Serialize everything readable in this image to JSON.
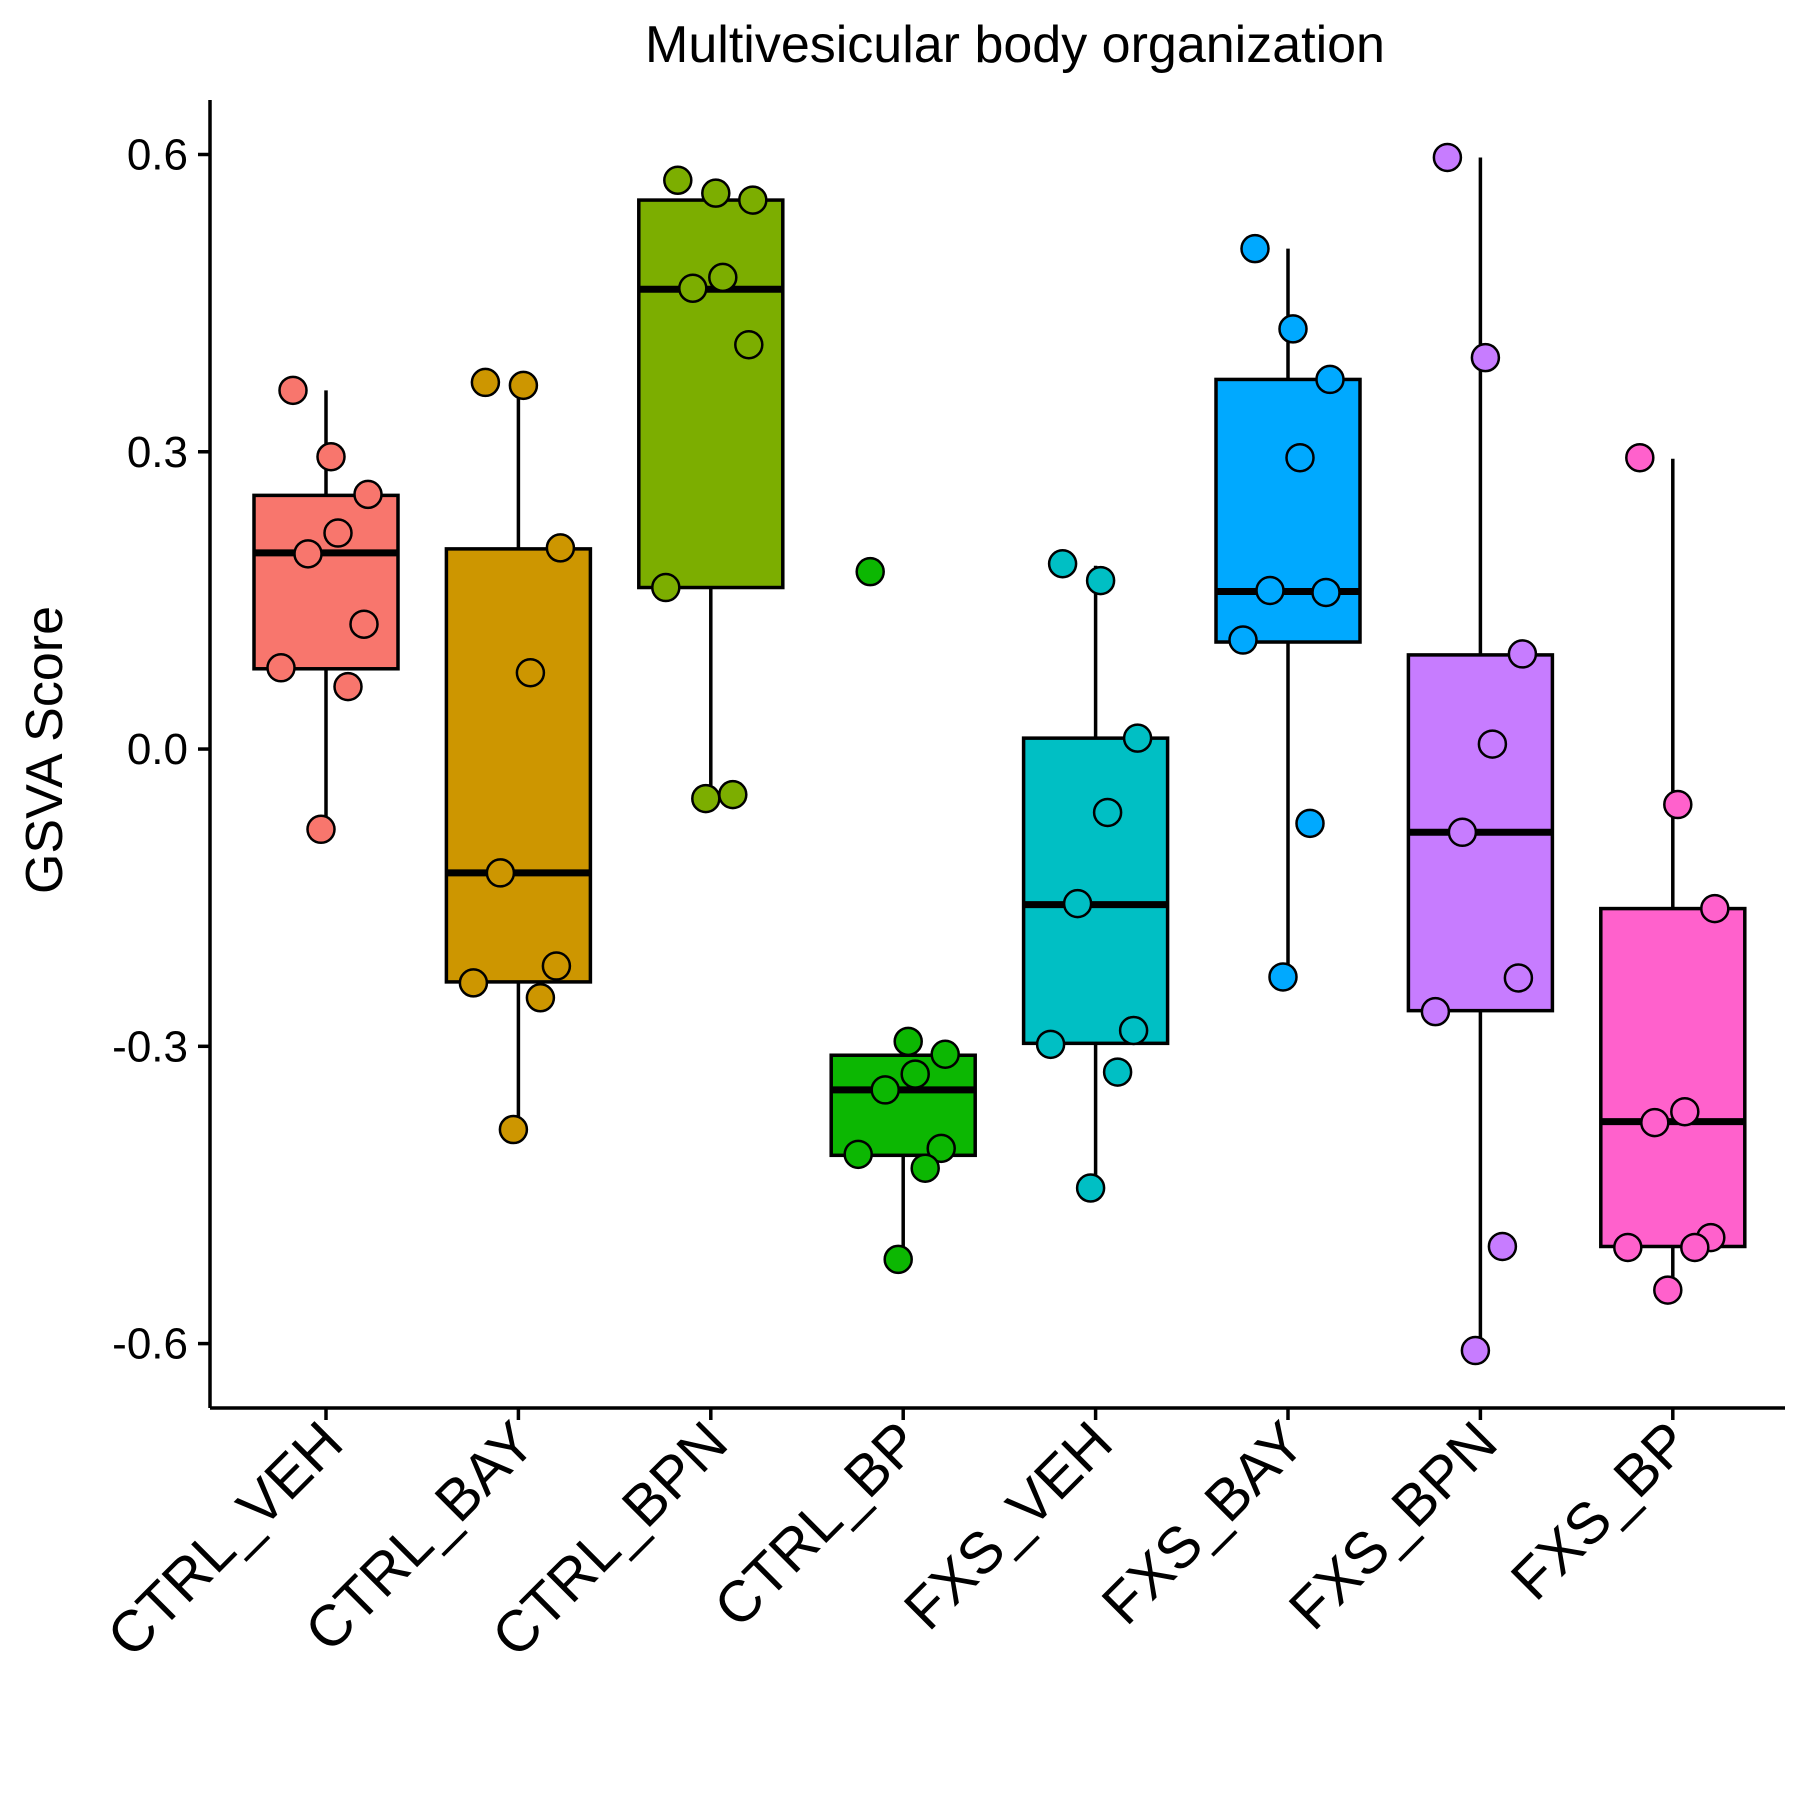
{
  "chart_data": {
    "type": "box",
    "title": "Multivesicular body organization",
    "xlabel": "",
    "ylabel": "GSVA Score",
    "ylim": [
      -0.665,
      0.655
    ],
    "yticks": [
      0.6,
      0.3,
      0.0,
      -0.3,
      -0.6
    ],
    "ytick_labels": [
      "0.6",
      "0.3",
      "0.0",
      "-0.3",
      "-0.6"
    ],
    "grid": false,
    "legend": "none",
    "categories": [
      "CTRL_VEH",
      "CTRL_BAY",
      "CTRL_BPN",
      "CTRL_BP",
      "FXS_VEH",
      "FXS_BAY",
      "FXS_BPN",
      "FXS_BP"
    ],
    "groups": [
      {
        "name": "CTRL_VEH",
        "color": "#F8766D",
        "box": {
          "q1": 0.081,
          "median": 0.198,
          "q3": 0.256,
          "whisker_low": -0.08,
          "whisker_high": 0.362
        },
        "points": [
          0.362,
          0.295,
          0.257,
          0.218,
          0.197,
          0.126,
          0.082,
          0.063,
          -0.081
        ]
      },
      {
        "name": "CTRL_BAY",
        "color": "#CD9600",
        "box": {
          "q1": -0.235,
          "median": -0.125,
          "q3": 0.202,
          "whisker_low": -0.384,
          "whisker_high": 0.368
        },
        "points": [
          0.37,
          0.367,
          0.203,
          0.077,
          -0.125,
          -0.219,
          -0.236,
          -0.251,
          -0.384
        ]
      },
      {
        "name": "CTRL_BPN",
        "color": "#7CAE00",
        "box": {
          "q1": 0.163,
          "median": 0.464,
          "q3": 0.554,
          "whisker_low": -0.05,
          "whisker_high": 0.554
        },
        "points": [
          0.574,
          0.561,
          0.554,
          0.476,
          0.465,
          0.408,
          0.163,
          -0.046,
          -0.05
        ]
      },
      {
        "name": "CTRL_BP",
        "color": "#0CB702",
        "box": {
          "q1": -0.41,
          "median": -0.344,
          "q3": -0.309,
          "whisker_low": -0.513,
          "whisker_high": -0.295
        },
        "points": [
          0.179,
          -0.295,
          -0.308,
          -0.328,
          -0.344,
          -0.403,
          -0.409,
          -0.423,
          -0.515
        ]
      },
      {
        "name": "FXS_VEH",
        "color": "#00BFC4",
        "box": {
          "q1": -0.297,
          "median": -0.157,
          "q3": 0.011,
          "whisker_low": -0.442,
          "whisker_high": 0.185
        },
        "points": [
          0.187,
          0.17,
          0.011,
          -0.064,
          -0.156,
          -0.284,
          -0.298,
          -0.326,
          -0.443
        ]
      },
      {
        "name": "FXS_BAY",
        "color": "#00A9FF",
        "box": {
          "q1": 0.108,
          "median": 0.159,
          "q3": 0.373,
          "whisker_low": -0.229,
          "whisker_high": 0.505
        },
        "points": [
          0.505,
          0.424,
          0.373,
          0.294,
          0.16,
          0.158,
          0.11,
          -0.075,
          -0.23
        ]
      },
      {
        "name": "FXS_BPN",
        "color": "#C77CFF",
        "box": {
          "q1": -0.264,
          "median": -0.084,
          "q3": 0.095,
          "whisker_low": -0.606,
          "whisker_high": 0.597
        },
        "points": [
          0.597,
          0.395,
          0.096,
          0.005,
          -0.084,
          -0.231,
          -0.265,
          -0.502,
          -0.607
        ]
      },
      {
        "name": "FXS_BP",
        "color": "#FF61CC",
        "box": {
          "q1": -0.502,
          "median": -0.376,
          "q3": -0.161,
          "whisker_low": -0.547,
          "whisker_high": 0.293
        },
        "points": [
          0.294,
          -0.056,
          -0.161,
          -0.366,
          -0.377,
          -0.493,
          -0.503,
          -0.503,
          -0.546
        ]
      }
    ]
  }
}
